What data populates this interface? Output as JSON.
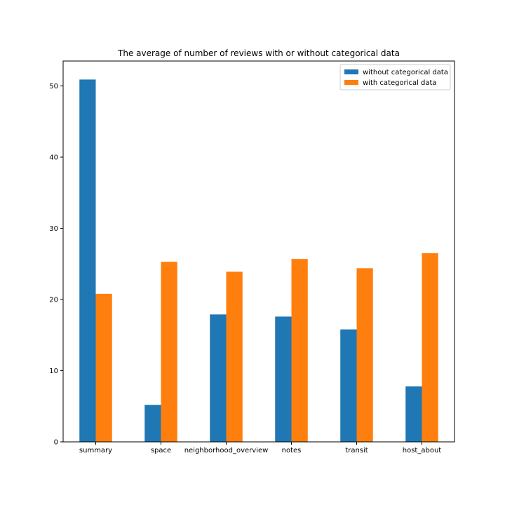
{
  "chart_data": {
    "type": "bar",
    "title": "The average of number of reviews with or without categorical data",
    "xlabel": "",
    "ylabel": "",
    "categories": [
      "summary",
      "space",
      "neighborhood_overview",
      "notes",
      "transit",
      "host_about"
    ],
    "series": [
      {
        "name": "without categorical data",
        "color": "#1f77b4",
        "values": [
          50.9,
          5.2,
          17.9,
          17.6,
          15.8,
          7.8
        ]
      },
      {
        "name": "with categorical data",
        "color": "#ff7f0e",
        "values": [
          20.8,
          25.3,
          23.9,
          25.7,
          24.4,
          26.5
        ]
      }
    ],
    "ylim": [
      0,
      53.5
    ],
    "yticks": [
      0,
      10,
      20,
      30,
      40,
      50
    ],
    "grid": false,
    "legend_position": "top-right"
  }
}
